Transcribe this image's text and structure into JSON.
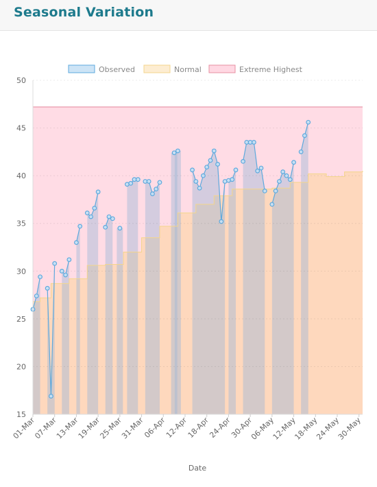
{
  "page": {
    "title": "Seasonal Variation"
  },
  "chart_data": {
    "type": "line",
    "xlabel": "Date",
    "ylabel": "",
    "ylim": [
      15,
      50
    ],
    "yticks": [
      15,
      20,
      25,
      30,
      35,
      40,
      45,
      50
    ],
    "grid": true,
    "legend_position": "top",
    "x_range": [
      "2022-03-01",
      "2022-05-31"
    ],
    "x_tick_dates": [
      "2022-03-01",
      "2022-03-07",
      "2022-03-13",
      "2022-03-19",
      "2022-03-25",
      "2022-03-31",
      "2022-04-06",
      "2022-04-12",
      "2022-04-18",
      "2022-04-24",
      "2022-04-30",
      "2022-05-06",
      "2022-05-12",
      "2022-05-18",
      "2022-05-24",
      "2022-05-30"
    ],
    "x_tick_labels": [
      "01-Mar",
      "07-Mar",
      "13-Mar",
      "19-Mar",
      "25-Mar",
      "31-Mar",
      "06-Apr",
      "12-Apr",
      "18-Apr",
      "24-Apr",
      "30-Apr",
      "06-May",
      "12-May",
      "18-May",
      "24-May",
      "30-May"
    ],
    "series": [
      {
        "name": "Observed",
        "kind": "line-points",
        "color": "#5da9dd",
        "fill": "rgba(160,185,215,0.45)",
        "x": [
          "2022-03-01",
          "2022-03-02",
          "2022-03-03",
          "2022-03-05",
          "2022-03-06",
          "2022-03-07",
          "2022-03-09",
          "2022-03-10",
          "2022-03-11",
          "2022-03-13",
          "2022-03-14",
          "2022-03-16",
          "2022-03-17",
          "2022-03-18",
          "2022-03-19",
          "2022-03-21",
          "2022-03-22",
          "2022-03-23",
          "2022-03-25",
          "2022-03-27",
          "2022-03-28",
          "2022-03-29",
          "2022-03-30",
          "2022-04-01",
          "2022-04-02",
          "2022-04-03",
          "2022-04-04",
          "2022-04-05",
          "2022-04-09",
          "2022-04-10",
          "2022-04-14",
          "2022-04-15",
          "2022-04-16",
          "2022-04-17",
          "2022-04-18",
          "2022-04-19",
          "2022-04-20",
          "2022-04-21",
          "2022-04-22",
          "2022-04-23",
          "2022-04-24",
          "2022-04-25",
          "2022-04-26",
          "2022-04-28",
          "2022-04-29",
          "2022-04-30",
          "2022-05-01",
          "2022-05-02",
          "2022-05-03",
          "2022-05-04",
          "2022-05-06",
          "2022-05-07",
          "2022-05-08",
          "2022-05-09",
          "2022-05-10",
          "2022-05-11",
          "2022-05-12",
          "2022-05-14",
          "2022-05-15",
          "2022-05-16"
        ],
        "y": [
          26.0,
          27.4,
          29.4,
          28.2,
          16.9,
          30.8,
          30.0,
          29.6,
          31.2,
          33.0,
          34.7,
          36.1,
          35.7,
          36.6,
          38.3,
          34.6,
          35.7,
          35.5,
          34.5,
          39.1,
          39.2,
          39.6,
          39.6,
          39.4,
          39.4,
          38.1,
          38.6,
          39.3,
          42.4,
          42.6,
          40.6,
          39.4,
          38.7,
          40.0,
          40.9,
          41.6,
          42.6,
          41.2,
          35.2,
          39.4,
          39.5,
          39.6,
          40.6,
          41.5,
          43.5,
          43.5,
          43.5,
          40.5,
          40.8,
          38.4,
          37.0,
          38.4,
          39.4,
          40.4,
          40.0,
          39.6,
          41.4,
          42.5,
          44.2,
          45.6
        ],
        "segments": [
          [
            0,
            2
          ],
          [
            3,
            5
          ],
          [
            6,
            8
          ],
          [
            9,
            10
          ],
          [
            11,
            14
          ],
          [
            15,
            17
          ],
          [
            18,
            18
          ],
          [
            19,
            22
          ],
          [
            23,
            27
          ],
          [
            28,
            28
          ],
          [
            29,
            29
          ],
          [
            30,
            39
          ],
          [
            40,
            42
          ],
          [
            43,
            49
          ],
          [
            50,
            56
          ],
          [
            57,
            59
          ]
        ]
      },
      {
        "name": "Normal",
        "kind": "step-area",
        "color": "#f3d58c",
        "fill": "rgba(253,215,175,0.75)",
        "x": [
          "2022-03-01",
          "2022-03-03",
          "2022-03-06",
          "2022-03-11",
          "2022-03-16",
          "2022-03-21",
          "2022-03-26",
          "2022-03-31",
          "2022-04-05",
          "2022-04-10",
          "2022-04-15",
          "2022-04-20",
          "2022-04-25",
          "2022-05-01",
          "2022-05-06",
          "2022-05-11",
          "2022-05-16",
          "2022-05-21",
          "2022-05-26",
          "2022-05-31"
        ],
        "y": [
          26.8,
          27.2,
          28.7,
          29.2,
          30.6,
          30.7,
          32.0,
          33.5,
          34.7,
          36.1,
          37.0,
          37.9,
          38.6,
          38.6,
          38.7,
          39.3,
          40.2,
          39.9,
          40.4,
          40.5
        ]
      },
      {
        "name": "Extreme Highest",
        "kind": "area",
        "color": "#e78fa2",
        "fill": "rgba(255,214,225,0.85)",
        "y_constant": 47.2
      }
    ]
  }
}
